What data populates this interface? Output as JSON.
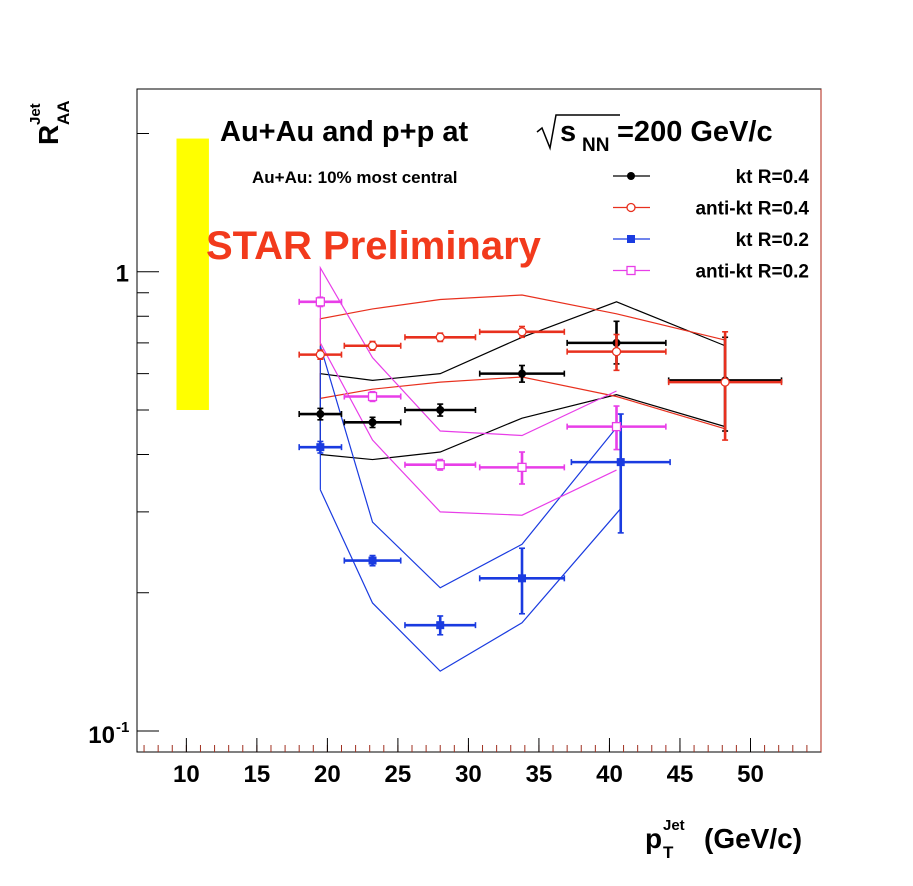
{
  "chart_data": {
    "type": "scatter",
    "title": "Au+Au and p+p at",
    "title_sqrt": "s",
    "title_sub": "NN",
    "title_tail": "=200 GeV/c",
    "subtitle": "Au+Au: 10% most central",
    "watermark": "STAR Preliminary",
    "xlabel_main": "p",
    "xlabel_sup": "Jet",
    "xlabel_sub": "T",
    "xlabel_unit": "(GeV/c)",
    "ylabel_main": "R",
    "ylabel_sup": "Jet",
    "ylabel_sub": "AA",
    "xlim": [
      6.5,
      55
    ],
    "ylim": [
      0.09,
      2.5
    ],
    "yscale": "log",
    "x_ticks": [
      {
        "value": 10,
        "label": "10"
      },
      {
        "value": 15,
        "label": "15"
      },
      {
        "value": 20,
        "label": "20"
      },
      {
        "value": 25,
        "label": "25"
      },
      {
        "value": 30,
        "label": "30"
      },
      {
        "value": 35,
        "label": "35"
      },
      {
        "value": 40,
        "label": "40"
      },
      {
        "value": 45,
        "label": "45"
      },
      {
        "value": 50,
        "label": "50"
      }
    ],
    "y_ticks": [
      {
        "value": 1,
        "base": "1",
        "exp": ""
      },
      {
        "value": 0.1,
        "base": "10",
        "exp": "-1"
      }
    ],
    "legend": [
      {
        "label": "kt R=0.4",
        "color": "#000000",
        "marker": "filled-circle"
      },
      {
        "label": "anti-kt R=0.4",
        "color": "#e8301e",
        "marker": "open-circle"
      },
      {
        "label": "kt R=0.2",
        "color": "#1a3be0",
        "marker": "filled-square"
      },
      {
        "label": "anti-kt R=0.2",
        "color": "#e83ee8",
        "marker": "open-square"
      }
    ],
    "norm_band": {
      "x_range": [
        9.3,
        11.6
      ],
      "y_range": [
        0.5,
        1.95
      ],
      "color": "#ffff00"
    },
    "series": [
      {
        "name": "kt R=0.4",
        "color": "#000000",
        "marker": "filled-circle",
        "points": [
          {
            "x": 19.5,
            "y": 0.49,
            "xerr": 1.5,
            "ylo": 0.476,
            "yhi": 0.504
          },
          {
            "x": 23.2,
            "y": 0.47,
            "xerr": 2.0,
            "ylo": 0.458,
            "yhi": 0.482
          },
          {
            "x": 28.0,
            "y": 0.5,
            "xerr": 2.5,
            "ylo": 0.485,
            "yhi": 0.515
          },
          {
            "x": 33.8,
            "y": 0.6,
            "xerr": 3.0,
            "ylo": 0.575,
            "yhi": 0.625
          },
          {
            "x": 40.5,
            "y": 0.7,
            "xerr": 3.5,
            "ylo": 0.63,
            "yhi": 0.78
          },
          {
            "x": 48.2,
            "y": 0.58,
            "xerr": 4.0,
            "ylo": 0.45,
            "yhi": 0.72
          }
        ],
        "band_upper": [
          {
            "x": 19.5,
            "y": 0.6
          },
          {
            "x": 23.2,
            "y": 0.58
          },
          {
            "x": 28,
            "y": 0.6
          },
          {
            "x": 33.8,
            "y": 0.72
          },
          {
            "x": 40.5,
            "y": 0.86
          },
          {
            "x": 48.2,
            "y": 0.69
          }
        ],
        "band_lower": [
          {
            "x": 19.5,
            "y": 0.4
          },
          {
            "x": 23.2,
            "y": 0.39
          },
          {
            "x": 28,
            "y": 0.405
          },
          {
            "x": 33.8,
            "y": 0.48
          },
          {
            "x": 40.5,
            "y": 0.54
          },
          {
            "x": 48.2,
            "y": 0.46
          }
        ]
      },
      {
        "name": "anti-kt R=0.4",
        "color": "#e8301e",
        "marker": "open-circle",
        "points": [
          {
            "x": 19.5,
            "y": 0.66,
            "xerr": 1.5,
            "ylo": 0.645,
            "yhi": 0.675
          },
          {
            "x": 23.2,
            "y": 0.69,
            "xerr": 2.0,
            "ylo": 0.675,
            "yhi": 0.705
          },
          {
            "x": 28.0,
            "y": 0.72,
            "xerr": 2.5,
            "ylo": 0.705,
            "yhi": 0.735
          },
          {
            "x": 33.8,
            "y": 0.74,
            "xerr": 3.0,
            "ylo": 0.72,
            "yhi": 0.76
          },
          {
            "x": 40.5,
            "y": 0.67,
            "xerr": 3.5,
            "ylo": 0.61,
            "yhi": 0.73
          },
          {
            "x": 48.2,
            "y": 0.575,
            "xerr": 4.0,
            "ylo": 0.43,
            "yhi": 0.74
          }
        ],
        "band_upper": [
          {
            "x": 19.5,
            "y": 0.79
          },
          {
            "x": 23.2,
            "y": 0.83
          },
          {
            "x": 28,
            "y": 0.87
          },
          {
            "x": 33.8,
            "y": 0.89
          },
          {
            "x": 40.5,
            "y": 0.81
          },
          {
            "x": 48.2,
            "y": 0.71
          }
        ],
        "band_lower": [
          {
            "x": 19.5,
            "y": 0.53
          },
          {
            "x": 23.2,
            "y": 0.555
          },
          {
            "x": 28,
            "y": 0.575
          },
          {
            "x": 33.8,
            "y": 0.59
          },
          {
            "x": 40.5,
            "y": 0.535
          },
          {
            "x": 48.2,
            "y": 0.455
          }
        ]
      },
      {
        "name": "kt R=0.2",
        "color": "#1a3be0",
        "marker": "filled-square",
        "points": [
          {
            "x": 19.5,
            "y": 0.415,
            "xerr": 1.5,
            "ylo": 0.403,
            "yhi": 0.427
          },
          {
            "x": 23.2,
            "y": 0.235,
            "xerr": 2.0,
            "ylo": 0.229,
            "yhi": 0.241
          },
          {
            "x": 28.0,
            "y": 0.17,
            "xerr": 2.5,
            "ylo": 0.162,
            "yhi": 0.178
          },
          {
            "x": 33.8,
            "y": 0.215,
            "xerr": 3.0,
            "ylo": 0.18,
            "yhi": 0.25
          },
          {
            "x": 40.8,
            "y": 0.385,
            "xerr": 3.5,
            "ylo": 0.27,
            "yhi": 0.49
          }
        ],
        "band_upper": [
          {
            "x": 19.5,
            "y": 0.69
          },
          {
            "x": 23.2,
            "y": 0.285
          },
          {
            "x": 28,
            "y": 0.205
          },
          {
            "x": 33.8,
            "y": 0.255
          },
          {
            "x": 40.8,
            "y": 0.47
          }
        ],
        "band_lower": [
          {
            "x": 19.5,
            "y": 0.335
          },
          {
            "x": 23.2,
            "y": 0.19
          },
          {
            "x": 28,
            "y": 0.135
          },
          {
            "x": 33.8,
            "y": 0.172
          },
          {
            "x": 40.8,
            "y": 0.305
          }
        ]
      },
      {
        "name": "anti-kt R=0.2",
        "color": "#e83ee8",
        "marker": "open-square",
        "points": [
          {
            "x": 19.5,
            "y": 0.86,
            "xerr": 1.5,
            "ylo": 0.84,
            "yhi": 0.88
          },
          {
            "x": 23.2,
            "y": 0.535,
            "xerr": 2.0,
            "ylo": 0.522,
            "yhi": 0.548
          },
          {
            "x": 28.0,
            "y": 0.38,
            "xerr": 2.5,
            "ylo": 0.37,
            "yhi": 0.39
          },
          {
            "x": 33.8,
            "y": 0.375,
            "xerr": 3.0,
            "ylo": 0.345,
            "yhi": 0.405
          },
          {
            "x": 40.5,
            "y": 0.46,
            "xerr": 3.5,
            "ylo": 0.41,
            "yhi": 0.51
          }
        ],
        "band_upper": [
          {
            "x": 19.5,
            "y": 1.02
          },
          {
            "x": 23.2,
            "y": 0.65
          },
          {
            "x": 28,
            "y": 0.45
          },
          {
            "x": 33.8,
            "y": 0.44
          },
          {
            "x": 40.5,
            "y": 0.55
          }
        ],
        "band_lower": [
          {
            "x": 19.5,
            "y": 0.7
          },
          {
            "x": 23.2,
            "y": 0.43
          },
          {
            "x": 28,
            "y": 0.3
          },
          {
            "x": 33.8,
            "y": 0.295
          },
          {
            "x": 40.5,
            "y": 0.37
          }
        ]
      }
    ]
  }
}
